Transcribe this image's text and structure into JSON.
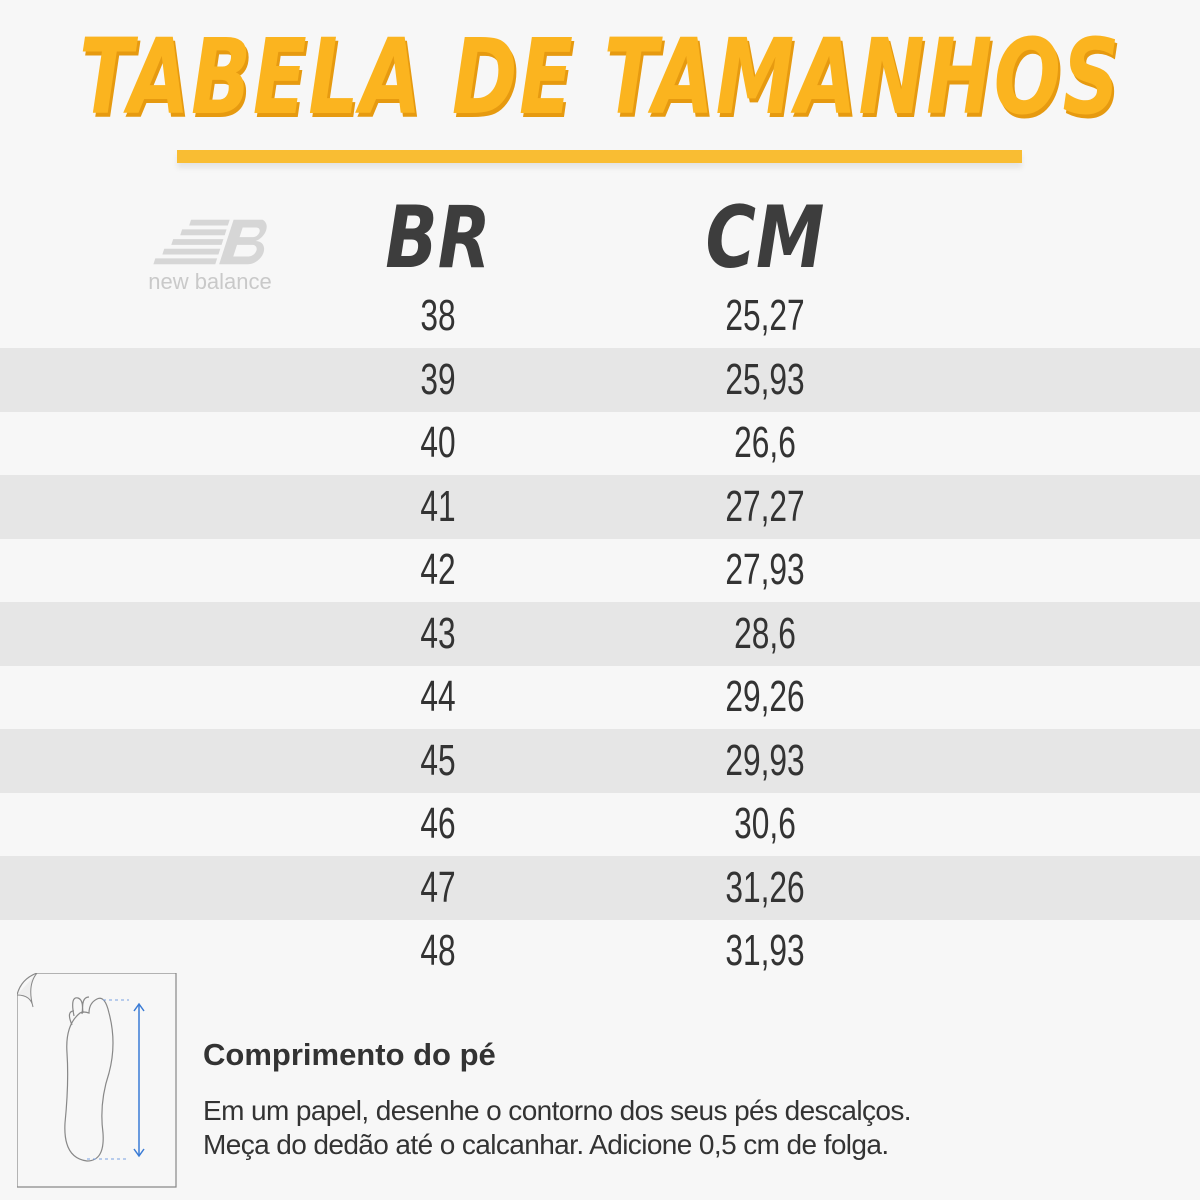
{
  "title": "TABELA DE TAMANHOS",
  "brand": {
    "name": "new balance"
  },
  "accent_color": "#fbb41f",
  "table": {
    "columns": [
      "BR",
      "CM"
    ],
    "rows": [
      {
        "br": "38",
        "cm": "25,27"
      },
      {
        "br": "39",
        "cm": "25,93"
      },
      {
        "br": "40",
        "cm": "26,6"
      },
      {
        "br": "41",
        "cm": "27,27"
      },
      {
        "br": "42",
        "cm": "27,93"
      },
      {
        "br": "43",
        "cm": "28,6"
      },
      {
        "br": "44",
        "cm": "29,26"
      },
      {
        "br": "45",
        "cm": "29,93"
      },
      {
        "br": "46",
        "cm": "30,6"
      },
      {
        "br": "47",
        "cm": "31,26"
      },
      {
        "br": "48",
        "cm": "31,93"
      }
    ]
  },
  "howto": {
    "icon": "foot-measure-icon",
    "title": "Comprimento do pé",
    "line1": "Em um papel, desenhe o contorno dos seus pés descalços.",
    "line2": "Meça do dedão até o calcanhar. Adicione 0,5 cm de folga."
  }
}
